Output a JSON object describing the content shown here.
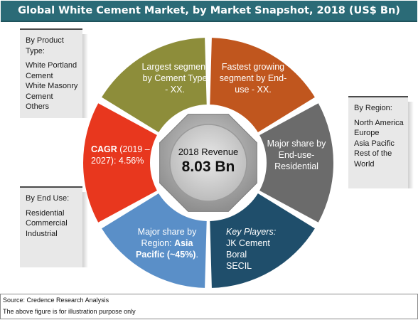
{
  "title": "Global White Cement Market, by Market Snapshot, 2018 (US$ Bn)",
  "panels": {
    "product_type": {
      "heading": "By Product Type:",
      "items": [
        "White Portland Cement",
        "White Masonry Cement",
        "Others"
      ]
    },
    "region": {
      "heading": "By Region:",
      "items": [
        "North America",
        "Europe",
        "Asia Pacific",
        "Rest of the World"
      ]
    },
    "end_use": {
      "heading": "By End Use:",
      "items": [
        "Residential",
        "Commercial",
        "Industrial"
      ]
    }
  },
  "segments": {
    "largest": "Largest segment by Cement Type - XX.",
    "fastest": "Fastest growing segment by End-use - XX.",
    "residential": "Major share by End-use-Residential",
    "players_title": "Key Players:",
    "players": [
      "JK Cement",
      "Boral",
      "SECIL"
    ],
    "asia_prefix": "Major share by Region: ",
    "asia_bold": "Asia Pacific (~45%)",
    "asia_suffix": ".",
    "cagr_bold": "CAGR",
    "cagr_rest": " (2019 – 2027): 4.56%"
  },
  "center": {
    "label": "2018 Revenue",
    "value": "8.03 Bn"
  },
  "colors": {
    "title_bar": "#2b6b77",
    "olive": "#8d8d3a",
    "orange": "#c0561e",
    "gray": "#6b6b6b",
    "navy": "#1f4e6b",
    "blue": "#5a8fc8",
    "red": "#e8371e"
  },
  "footer": {
    "source": "Source: Credence Research Analysis",
    "note": "The above figure is for illustration purpose only"
  }
}
